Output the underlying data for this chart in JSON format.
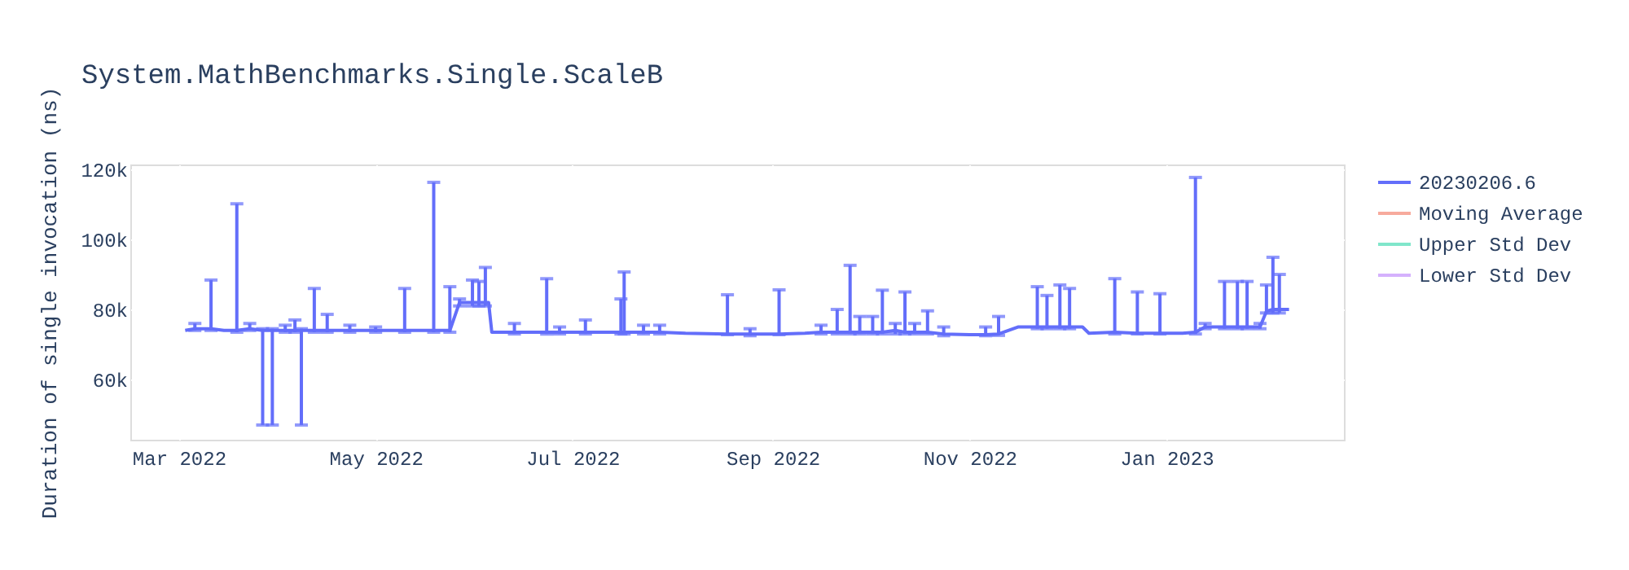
{
  "chart_data": {
    "type": "line",
    "title": "System.MathBenchmarks.Single.ScaleB",
    "ylabel": "Duration of single invocation (ns)",
    "x": [
      "2022-03-03",
      "2022-03-06",
      "2022-03-11",
      "2022-03-15",
      "2022-03-19",
      "2022-03-23",
      "2022-03-27",
      "2022-03-30",
      "2022-04-03",
      "2022-04-06",
      "2022-04-08",
      "2022-04-12",
      "2022-04-16",
      "2022-04-23",
      "2022-05-01",
      "2022-05-10",
      "2022-05-16",
      "2022-05-19",
      "2022-05-24",
      "2022-05-27",
      "2022-05-31",
      "2022-06-02",
      "2022-06-04",
      "2022-06-05",
      "2022-06-06",
      "2022-06-13",
      "2022-06-23",
      "2022-06-27",
      "2022-07-05",
      "2022-07-10",
      "2022-07-16",
      "2022-07-17",
      "2022-07-23",
      "2022-07-28",
      "2022-08-05",
      "2022-08-18",
      "2022-08-25",
      "2022-09-03",
      "2022-09-11",
      "2022-09-16",
      "2022-09-21",
      "2022-09-25",
      "2022-09-28",
      "2022-10-02",
      "2022-10-05",
      "2022-10-09",
      "2022-10-12",
      "2022-10-15",
      "2022-10-19",
      "2022-10-24",
      "2022-11-01",
      "2022-11-06",
      "2022-11-10",
      "2022-11-16",
      "2022-11-22",
      "2022-11-25",
      "2022-11-29",
      "2022-12-02",
      "2022-12-06",
      "2022-12-08",
      "2022-12-16",
      "2022-12-23",
      "2022-12-30",
      "2023-01-06",
      "2023-01-10",
      "2023-01-13",
      "2023-01-19",
      "2023-01-23",
      "2023-01-26",
      "2023-01-30",
      "2023-02-01",
      "2023-02-03",
      "2023-02-05",
      "2023-02-08"
    ],
    "series": [
      {
        "name": "20230206.6",
        "color": "#636efa",
        "values": [
          74000,
          74500,
          74500,
          74000,
          74000,
          74500,
          74000,
          74000,
          74000,
          74000,
          74000,
          74000,
          74000,
          74000,
          74000,
          74000,
          74000,
          74000,
          74000,
          82000,
          82000,
          82000,
          82000,
          82000,
          73500,
          73500,
          73500,
          73500,
          73500,
          73500,
          73500,
          73500,
          73500,
          73500,
          73200,
          73000,
          73000,
          73000,
          73200,
          73500,
          73500,
          73500,
          73500,
          73500,
          73500,
          74000,
          73500,
          73500,
          73500,
          73000,
          72800,
          72800,
          73000,
          75000,
          75000,
          75000,
          75000,
          75000,
          75000,
          73200,
          73500,
          73200,
          73200,
          73200,
          73500,
          75000,
          75000,
          75000,
          75000,
          75000,
          79500,
          80000,
          80000,
          80000
        ],
        "errors": [
          null,
          [
            74000,
            76000
          ],
          [
            74000,
            88400
          ],
          null,
          [
            73500,
            110200
          ],
          [
            74000,
            76000
          ],
          [
            47000,
            74500
          ],
          [
            47000,
            74500
          ],
          [
            73500,
            75500
          ],
          [
            73500,
            77000
          ],
          [
            47000,
            74500
          ],
          [
            73500,
            86000
          ],
          [
            73500,
            78600
          ],
          [
            73500,
            75500
          ],
          [
            73500,
            75000
          ],
          [
            73500,
            86000
          ],
          null,
          [
            73500,
            116300
          ],
          [
            73500,
            86500
          ],
          [
            81000,
            83000
          ],
          [
            81000,
            88400
          ],
          [
            81000,
            88000
          ],
          [
            81000,
            92000
          ],
          null,
          null,
          [
            73000,
            76000
          ],
          [
            73000,
            88800
          ],
          [
            73000,
            75000
          ],
          [
            73000,
            77000
          ],
          null,
          [
            73000,
            83000
          ],
          [
            73000,
            90700
          ],
          [
            73000,
            75500
          ],
          [
            73000,
            75500
          ],
          null,
          [
            72800,
            84200
          ],
          [
            72500,
            74500
          ],
          [
            72800,
            85600
          ],
          null,
          [
            73000,
            75500
          ],
          [
            73000,
            80000
          ],
          [
            73000,
            92600
          ],
          [
            73000,
            78000
          ],
          [
            73000,
            78000
          ],
          [
            73000,
            85500
          ],
          [
            73000,
            76000
          ],
          [
            73000,
            85000
          ],
          [
            73000,
            76000
          ],
          [
            73000,
            79600
          ],
          [
            72500,
            75000
          ],
          null,
          [
            72500,
            75000
          ],
          [
            72600,
            78000
          ],
          null,
          [
            74500,
            86500
          ],
          [
            74500,
            84000
          ],
          [
            74500,
            87000
          ],
          [
            74500,
            86000
          ],
          null,
          null,
          [
            73000,
            88800
          ],
          [
            73000,
            85000
          ],
          [
            73000,
            84500
          ],
          null,
          [
            73000,
            117700
          ],
          [
            74500,
            76000
          ],
          [
            74500,
            88000
          ],
          [
            74500,
            88000
          ],
          [
            74500,
            88000
          ],
          [
            74500,
            76000
          ],
          [
            79000,
            87000
          ],
          [
            79000,
            94900
          ],
          [
            79000,
            90000
          ],
          null
        ]
      },
      {
        "name": "Moving Average",
        "color": "#f7aa9d",
        "values": [
          null,
          null,
          null,
          null,
          null,
          null,
          null,
          null,
          null,
          null,
          null,
          null,
          null,
          null,
          null,
          null,
          null,
          null,
          null,
          null,
          null,
          null,
          null,
          null,
          null,
          null,
          null,
          null,
          null,
          null,
          null,
          null,
          null,
          null,
          null,
          null,
          null,
          null,
          null,
          null,
          null,
          null,
          null,
          null,
          null,
          null,
          null,
          null,
          null,
          null,
          null,
          null,
          null,
          null,
          null,
          null,
          null,
          null,
          null,
          null,
          null,
          null,
          null,
          null,
          null,
          null,
          null,
          null,
          null,
          null,
          null,
          null,
          null,
          null
        ]
      },
      {
        "name": "Upper Std Dev",
        "color": "#80e6cb",
        "values": [
          null,
          null,
          null,
          null,
          null,
          null,
          null,
          null,
          null,
          null,
          null,
          null,
          null,
          null,
          null,
          null,
          null,
          null,
          null,
          null,
          null,
          null,
          null,
          null,
          null,
          null,
          null,
          null,
          null,
          null,
          null,
          null,
          null,
          null,
          null,
          null,
          null,
          null,
          null,
          null,
          null,
          null,
          null,
          null,
          null,
          null,
          null,
          null,
          null,
          null,
          null,
          null,
          null,
          null,
          null,
          null,
          null,
          null,
          null,
          null,
          null,
          null,
          null,
          null,
          null,
          null,
          null,
          null,
          null,
          null,
          null,
          null,
          null,
          null
        ]
      },
      {
        "name": "Lower Std Dev",
        "color": "#d5b1fd",
        "values": [
          null,
          null,
          null,
          null,
          null,
          null,
          null,
          null,
          null,
          null,
          null,
          null,
          null,
          null,
          null,
          null,
          null,
          null,
          null,
          null,
          null,
          null,
          null,
          null,
          null,
          null,
          null,
          null,
          null,
          null,
          null,
          null,
          null,
          null,
          null,
          null,
          null,
          null,
          null,
          null,
          null,
          null,
          null,
          null,
          null,
          null,
          null,
          null,
          null,
          null,
          null,
          null,
          null,
          null,
          null,
          null,
          null,
          null,
          null,
          null,
          null,
          null,
          null,
          null,
          null,
          null,
          null,
          null,
          null,
          null,
          null,
          null,
          null,
          null
        ]
      }
    ],
    "xlim": [
      "2022-02-14",
      "2023-02-25"
    ],
    "xticks": [
      {
        "value": "2022-03-01",
        "label": "Mar 2022"
      },
      {
        "value": "2022-05-01",
        "label": "May 2022"
      },
      {
        "value": "2022-07-01",
        "label": "Jul 2022"
      },
      {
        "value": "2022-09-01",
        "label": "Sep 2022"
      },
      {
        "value": "2022-11-01",
        "label": "Nov 2022"
      },
      {
        "value": "2023-01-01",
        "label": "Jan 2023"
      }
    ],
    "ylim": [
      42800,
      121400
    ],
    "yticks": [
      {
        "value": 60000,
        "label": "60k"
      },
      {
        "value": 80000,
        "label": "80k"
      },
      {
        "value": 100000,
        "label": "100k"
      },
      {
        "value": 120000,
        "label": "120k"
      }
    ],
    "grid": true,
    "legend": "top right",
    "marker": "none",
    "line_style": "solid"
  }
}
